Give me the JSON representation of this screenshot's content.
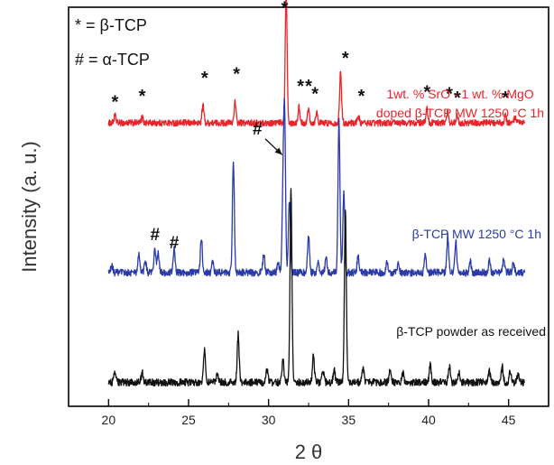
{
  "chart_data": {
    "type": "line",
    "xlabel": "2 θ",
    "ylabel": "Intensity (a. u.)",
    "xlim": [
      17.5,
      47.5
    ],
    "x_ticks": [
      20,
      25,
      30,
      35,
      40,
      45
    ],
    "x_tick_labels": [
      "20",
      "25",
      "30",
      "35",
      "40",
      "45"
    ],
    "y_ticks": "none",
    "grid": false,
    "x_range": [
      20,
      46
    ],
    "legend": [
      {
        "symbol": "*",
        "phase": "β-TCP",
        "text": "* = β-TCP"
      },
      {
        "symbol": "#",
        "phase": "α-TCP",
        "text": "# = α-TCP"
      }
    ],
    "series": [
      {
        "label_lines": [
          "1wt. % SrO - 1 wt. % MgO",
          "doped β-TCP MW 1250 °C 1h"
        ],
        "color": "#e8242a",
        "offset": 0.71,
        "noise": 0.008,
        "peaks": [
          [
            20.4,
            0.018
          ],
          [
            22.1,
            0.014
          ],
          [
            25.9,
            0.045
          ],
          [
            27.9,
            0.052
          ],
          [
            31.1,
            0.33
          ],
          [
            31.9,
            0.04
          ],
          [
            32.5,
            0.036
          ],
          [
            33.0,
            0.028
          ],
          [
            34.5,
            0.13
          ],
          [
            35.6,
            0.018
          ],
          [
            39.9,
            0.036
          ],
          [
            41.2,
            0.028
          ],
          [
            41.8,
            0.02
          ],
          [
            44.8,
            0.018
          ],
          [
            45.4,
            0.012
          ]
        ]
      },
      {
        "label_lines": [
          "β-TCP MW 1250 °C 1h"
        ],
        "color": "#2a3aa8",
        "offset": 0.335,
        "noise": 0.009,
        "peaks": [
          [
            20.2,
            0.018
          ],
          [
            21.9,
            0.045
          ],
          [
            22.3,
            0.03
          ],
          [
            22.9,
            0.058
          ],
          [
            23.1,
            0.048
          ],
          [
            24.1,
            0.06
          ],
          [
            25.8,
            0.09
          ],
          [
            26.5,
            0.025
          ],
          [
            27.8,
            0.28
          ],
          [
            29.7,
            0.045
          ],
          [
            30.6,
            0.028
          ],
          [
            30.9,
            0.17
          ],
          [
            31.0,
            0.39
          ],
          [
            31.3,
            0.18
          ],
          [
            32.5,
            0.09
          ],
          [
            33.1,
            0.03
          ],
          [
            33.6,
            0.04
          ],
          [
            34.4,
            0.38
          ],
          [
            34.7,
            0.2
          ],
          [
            35.6,
            0.045
          ],
          [
            37.4,
            0.028
          ],
          [
            38.1,
            0.022
          ],
          [
            39.8,
            0.045
          ],
          [
            41.2,
            0.09
          ],
          [
            41.7,
            0.08
          ],
          [
            42.6,
            0.028
          ],
          [
            43.8,
            0.028
          ],
          [
            44.7,
            0.035
          ],
          [
            45.3,
            0.025
          ]
        ]
      },
      {
        "label_lines": [
          "β-TCP powder as received"
        ],
        "color": "#111111",
        "offset": 0.06,
        "noise": 0.009,
        "peaks": [
          [
            20.4,
            0.025
          ],
          [
            22.1,
            0.025
          ],
          [
            26.0,
            0.085
          ],
          [
            26.8,
            0.025
          ],
          [
            28.1,
            0.12
          ],
          [
            29.9,
            0.03
          ],
          [
            30.9,
            0.06
          ],
          [
            31.4,
            0.48
          ],
          [
            32.8,
            0.07
          ],
          [
            33.4,
            0.03
          ],
          [
            34.1,
            0.03
          ],
          [
            34.8,
            0.43
          ],
          [
            35.9,
            0.038
          ],
          [
            37.6,
            0.035
          ],
          [
            38.4,
            0.022
          ],
          [
            40.1,
            0.045
          ],
          [
            41.3,
            0.04
          ],
          [
            41.9,
            0.03
          ],
          [
            43.8,
            0.028
          ],
          [
            44.6,
            0.04
          ],
          [
            45.1,
            0.03
          ],
          [
            45.6,
            0.02
          ]
        ]
      }
    ],
    "annotations": {
      "beta_markers": [
        {
          "x": 20.4,
          "y": 0.775
        },
        {
          "x": 22.1,
          "y": 0.79
        },
        {
          "x": 26.0,
          "y": 0.835
        },
        {
          "x": 28.0,
          "y": 0.845
        },
        {
          "x": 31.0,
          "y": 1.01
        },
        {
          "x": 32.0,
          "y": 0.815
        },
        {
          "x": 32.5,
          "y": 0.815
        },
        {
          "x": 32.9,
          "y": 0.795
        },
        {
          "x": 34.8,
          "y": 0.885
        },
        {
          "x": 35.8,
          "y": 0.79
        },
        {
          "x": 39.9,
          "y": 0.8
        },
        {
          "x": 41.3,
          "y": 0.795
        },
        {
          "x": 41.8,
          "y": 0.785
        },
        {
          "x": 44.8,
          "y": 0.785
        }
      ],
      "alpha_markers": [
        {
          "x": 22.9,
          "y": 0.43
        },
        {
          "x": 24.1,
          "y": 0.41
        },
        {
          "x": 29.3,
          "y": 0.695
        }
      ],
      "alpha_arrow": {
        "from": [
          29.8,
          0.67
        ],
        "to": [
          30.85,
          0.63
        ]
      }
    }
  }
}
